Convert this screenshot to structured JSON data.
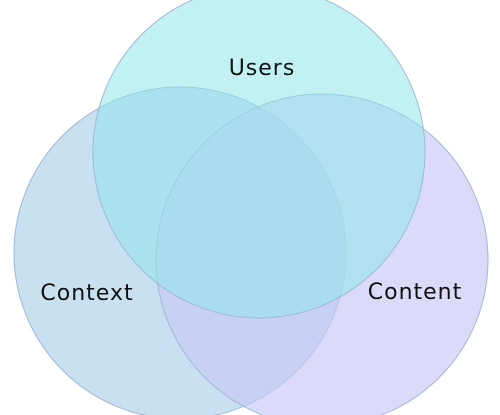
{
  "diagram": {
    "type": "venn",
    "sets": [
      {
        "key": "users",
        "label": "Users",
        "color": "#8fe6ea"
      },
      {
        "key": "context",
        "label": "Context",
        "color": "#9cc7e6"
      },
      {
        "key": "content",
        "label": "Content",
        "color": "#c8c8f6"
      }
    ],
    "colors": {
      "outline": "#9db8d6",
      "background": "#ffffff",
      "center": "#78c2df"
    }
  }
}
